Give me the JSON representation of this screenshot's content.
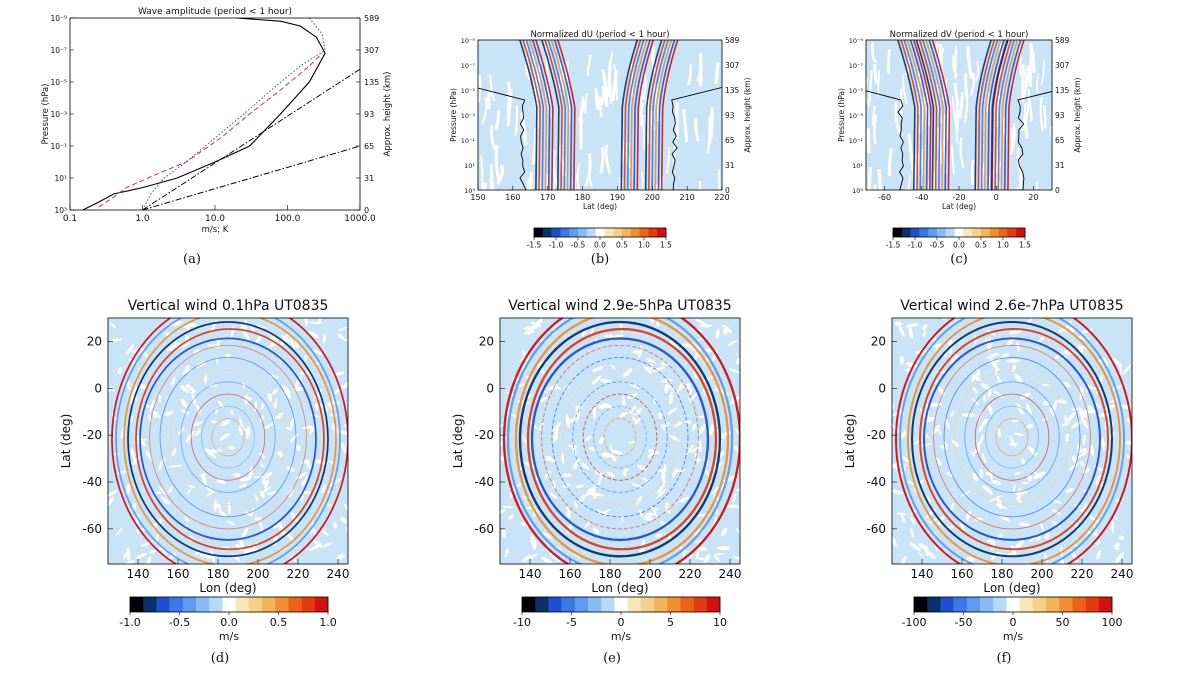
{
  "chart_data": [
    {
      "panel_label": "(a)",
      "type": "line",
      "title": "Wave amplitude (period < 1 hour)",
      "xlabel": "m/s; K",
      "ylabel": "Pressure (hPa)",
      "ylabel_right": "Approx. height (km)",
      "xscale": "log",
      "xlim": [
        0.1,
        1000.0
      ],
      "x_ticks": [
        "0.1",
        "1.0",
        "10.0",
        "100.0",
        "1000.0"
      ],
      "y_ticks": [
        "10⁻⁹",
        "10⁻⁷",
        "10⁻⁵",
        "10⁻³",
        "10⁻¹",
        "10¹",
        "10³"
      ],
      "y_ticks_right": [
        "589",
        "307",
        "135",
        "93",
        "65",
        "31",
        "0"
      ],
      "series": [
        {
          "name": "black solid",
          "color": "#000000",
          "style": "solid",
          "x": [
            0.15,
            0.25,
            0.4,
            1.0,
            3.0,
            10.0,
            30.0,
            80.0,
            200.0,
            330.0,
            250.0,
            150.0,
            80.0,
            20.0
          ],
          "y": [
            3.0,
            2.5,
            2.0,
            1.6,
            1.0,
            0.0,
            -1.0,
            -3.0,
            -5.0,
            -6.8,
            -7.8,
            -8.5,
            -8.8,
            -9.0
          ]
        },
        {
          "name": "red dashed",
          "color": "#e03030",
          "style": "dashed",
          "x": [
            0.25,
            0.4,
            0.6,
            1.5,
            4.0,
            12.0,
            30.0,
            80.0,
            200.0,
            300.0
          ],
          "y": [
            2.8,
            2.2,
            1.6,
            0.8,
            0.0,
            -1.5,
            -3.0,
            -4.5,
            -6.0,
            -6.8
          ]
        },
        {
          "name": "blue dotted",
          "color": "#3050e0",
          "style": "dotted",
          "x": [
            1.0,
            1.3,
            2.0,
            4.0,
            10.0,
            25.0,
            60.0,
            150.0,
            330.0,
            300.0,
            200.0
          ],
          "y": [
            3.0,
            2.0,
            1.0,
            0.0,
            -1.5,
            -3.0,
            -4.5,
            -6.0,
            -7.0,
            -8.0,
            -9.0
          ]
        },
        {
          "name": "reference dash-dot 1",
          "color": "#000000",
          "style": "dashdot",
          "x": [
            1.0,
            1000.0
          ],
          "y": [
            3.0,
            -5.8
          ]
        },
        {
          "name": "reference dash-dot 2",
          "color": "#000000",
          "style": "dashdot",
          "x": [
            1.0,
            1000.0
          ],
          "y": [
            3.0,
            -1.0
          ]
        }
      ]
    },
    {
      "panel_label": "(b)",
      "type": "heatmap",
      "title": "Normalized dU (period < 1 hour)",
      "xlabel": "Lat (deg)",
      "ylabel": "Pressure (hPa)",
      "ylabel_right": "Approx. height (km)",
      "xlim": [
        150,
        220
      ],
      "x_ticks": [
        "150",
        "160",
        "170",
        "180",
        "190",
        "200",
        "210",
        "220"
      ],
      "y_ticks": [
        "10⁻⁹",
        "10⁻⁷",
        "10⁻⁵",
        "10⁻³",
        "10⁻¹",
        "10¹",
        "10³"
      ],
      "y_ticks_right": [
        "589",
        "307",
        "135",
        "93",
        "65",
        "31",
        "0"
      ],
      "colorbar_ticks": [
        "-1.5",
        "-1.0",
        "-0.5",
        "0.0",
        "0.5",
        "1.0",
        "1.5"
      ],
      "colorbar_range": [
        -1.5,
        1.5
      ]
    },
    {
      "panel_label": "(c)",
      "type": "heatmap",
      "title": "Normalized dV (period < 1 hour)",
      "xlabel": "Lat (deg)",
      "ylabel": "Pressure (hPa)",
      "ylabel_right": "Approx. height (km)",
      "xlim": [
        -70,
        30
      ],
      "x_ticks": [
        "-60",
        "-40",
        "-20",
        "0",
        "20"
      ],
      "y_ticks": [
        "10⁻⁹",
        "10⁻⁷",
        "10⁻⁵",
        "10⁻³",
        "10⁻¹",
        "10¹",
        "10³"
      ],
      "y_ticks_right": [
        "589",
        "307",
        "135",
        "93",
        "65",
        "31",
        "0"
      ],
      "colorbar_ticks": [
        "-1.5",
        "-1.0",
        "-0.5",
        "0.0",
        "0.5",
        "1.0",
        "1.5"
      ],
      "colorbar_range": [
        -1.5,
        1.5
      ]
    },
    {
      "panel_label": "(d)",
      "type": "heatmap",
      "title": "Vertical wind 0.1hPa UT0835",
      "xlabel": "Lon (deg)",
      "ylabel": "Lat (deg)",
      "xlim": [
        125,
        245
      ],
      "ylim": [
        -75,
        30
      ],
      "x_ticks": [
        "140",
        "160",
        "180",
        "200",
        "220",
        "240"
      ],
      "y_ticks": [
        "20",
        "0",
        "-20",
        "-40",
        "-60"
      ],
      "colorbar_label": "m/s",
      "colorbar_ticks": [
        "-1.0",
        "-0.5",
        "0.0",
        "0.5",
        "1.0"
      ],
      "colorbar_range": [
        -1.0,
        1.0
      ]
    },
    {
      "panel_label": "(e)",
      "type": "heatmap",
      "title": "Vertical wind 2.9e-5hPa UT0835",
      "xlabel": "Lon (deg)",
      "ylabel": "Lat (deg)",
      "xlim": [
        125,
        245
      ],
      "ylim": [
        -75,
        30
      ],
      "x_ticks": [
        "140",
        "160",
        "180",
        "200",
        "220",
        "240"
      ],
      "y_ticks": [
        "20",
        "0",
        "-20",
        "-40",
        "-60"
      ],
      "colorbar_label": "m/s",
      "colorbar_ticks": [
        "-10",
        "-5",
        "0",
        "5",
        "10"
      ],
      "colorbar_range": [
        -10,
        10
      ]
    },
    {
      "panel_label": "(f)",
      "type": "heatmap",
      "title": "Vertical wind 2.6e-7hPa UT0835",
      "xlabel": "Lon (deg)",
      "ylabel": "Lat (deg)",
      "xlim": [
        125,
        245
      ],
      "ylim": [
        -75,
        30
      ],
      "x_ticks": [
        "140",
        "160",
        "180",
        "200",
        "220",
        "240"
      ],
      "y_ticks": [
        "20",
        "0",
        "-20",
        "-40",
        "-60"
      ],
      "colorbar_label": "m/s",
      "colorbar_ticks": [
        "-100",
        "-50",
        "0",
        "50",
        "100"
      ],
      "colorbar_range": [
        -100,
        100
      ]
    }
  ],
  "colors": {
    "background_field": "#c9e4f7",
    "colormap": [
      "#000000",
      "#08306b",
      "#1f4fd1",
      "#3a78e8",
      "#5d9cf0",
      "#86bdf5",
      "#b5dafa",
      "#ffffff",
      "#fbe6b5",
      "#f7d08a",
      "#f4b45c",
      "#ef8f2e",
      "#ea6418",
      "#e33a10",
      "#d40f0f"
    ]
  }
}
